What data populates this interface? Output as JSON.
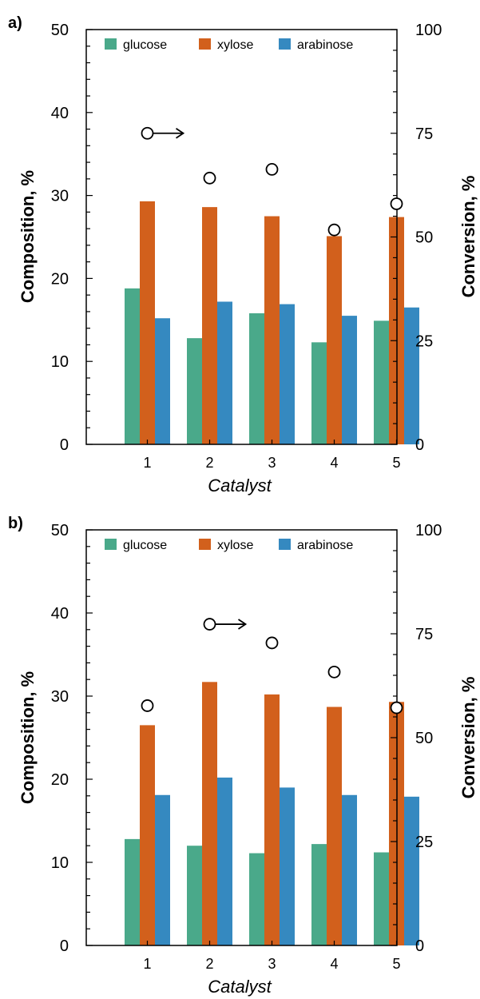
{
  "colors": {
    "glucose": "#4aa98a",
    "xylose": "#d2601c",
    "arabinose": "#3589c0"
  },
  "chart_data": [
    {
      "panel_label": "a)",
      "type": "bar",
      "xlabel": "Catalyst",
      "ylabel": "Composition, %",
      "y2label": "Conversion, %",
      "categories": [
        "1",
        "2",
        "3",
        "4",
        "5"
      ],
      "ylim": [
        0,
        50
      ],
      "y2lim": [
        0,
        100
      ],
      "yticks": [
        "0",
        "10",
        "20",
        "30",
        "40",
        "50"
      ],
      "y2ticks": [
        "0",
        "25",
        "50",
        "75",
        "100"
      ],
      "legend_position": "top",
      "series": [
        {
          "name": "glucose",
          "values": [
            18.8,
            12.8,
            15.8,
            12.3,
            14.9
          ]
        },
        {
          "name": "xylose",
          "values": [
            29.3,
            28.6,
            27.5,
            25.1,
            27.4
          ]
        },
        {
          "name": "arabinose",
          "values": [
            15.2,
            17.2,
            16.9,
            15.5,
            16.5
          ]
        }
      ],
      "conversion": [
        75.0,
        64.2,
        66.3,
        51.7,
        58.0
      ],
      "conversion_arrow_at": 0
    },
    {
      "panel_label": "b)",
      "type": "bar",
      "xlabel": "Catalyst",
      "ylabel": "Composition, %",
      "y2label": "Conversion, %",
      "categories": [
        "1",
        "2",
        "3",
        "4",
        "5"
      ],
      "ylim": [
        0,
        50
      ],
      "y2lim": [
        0,
        100
      ],
      "yticks": [
        "0",
        "10",
        "20",
        "30",
        "40",
        "50"
      ],
      "y2ticks": [
        "0",
        "25",
        "50",
        "75",
        "100"
      ],
      "legend_position": "top",
      "series": [
        {
          "name": "glucose",
          "values": [
            12.8,
            12.0,
            11.1,
            12.2,
            11.2
          ]
        },
        {
          "name": "xylose",
          "values": [
            26.5,
            31.7,
            30.2,
            28.7,
            29.3
          ]
        },
        {
          "name": "arabinose",
          "values": [
            18.1,
            20.2,
            19.0,
            18.1,
            17.9
          ]
        }
      ],
      "conversion": [
        57.7,
        77.3,
        72.8,
        65.8,
        57.2
      ],
      "conversion_arrow_at": 1
    }
  ]
}
